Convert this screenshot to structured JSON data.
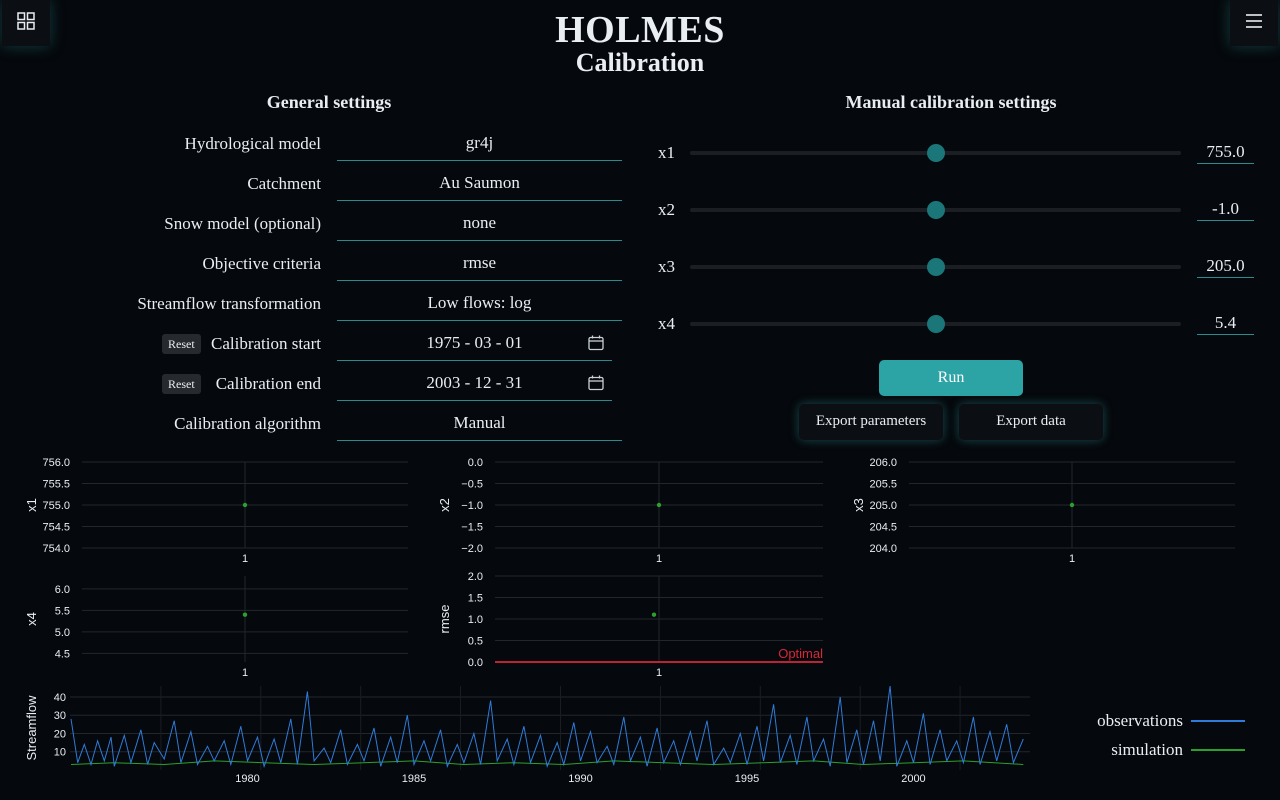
{
  "app": {
    "title": "HOLMES",
    "subtitle": "Calibration"
  },
  "icons": {
    "left": "grid-icon",
    "right": "menu-icon",
    "date": "calendar-icon"
  },
  "general": {
    "heading": "General settings",
    "rows": [
      {
        "label": "Hydrological model",
        "value": "gr4j"
      },
      {
        "label": "Catchment",
        "value": "Au Saumon"
      },
      {
        "label": "Snow model (optional)",
        "value": "none"
      },
      {
        "label": "Objective criteria",
        "value": "rmse"
      },
      {
        "label": "Streamflow transformation",
        "value": "Low flows: log"
      },
      {
        "label": "Calibration start",
        "value": "1975 - 03 - 01",
        "reset": "Reset"
      },
      {
        "label": "Calibration end",
        "value": "2003 - 12 - 31",
        "reset": "Reset"
      },
      {
        "label": "Calibration algorithm",
        "value": "Manual"
      }
    ]
  },
  "manual": {
    "heading": "Manual calibration settings",
    "params": [
      {
        "label": "x1",
        "value": "755.0",
        "position": 0.5
      },
      {
        "label": "x2",
        "value": "-1.0",
        "position": 0.5
      },
      {
        "label": "x3",
        "value": "205.0",
        "position": 0.5
      },
      {
        "label": "x4",
        "value": "5.4",
        "position": 0.5
      }
    ],
    "run_label": "Run",
    "export_params_label": "Export parameters",
    "export_data_label": "Export data"
  },
  "colors": {
    "accent": "#2ca3a5",
    "marker": "#2ca02c",
    "optimal": "#d6273a",
    "observations": "#2f7bd8",
    "simulation": "#2ca02c"
  },
  "chart_data": [
    {
      "type": "scatter",
      "ylabel": "x1",
      "x": [
        1
      ],
      "y": [
        755.0
      ],
      "xticks": [
        "1"
      ],
      "yticks": [
        "754.0",
        "754.5",
        "755.0",
        "755.5",
        "756.0"
      ],
      "ylim": [
        754.0,
        756.0
      ]
    },
    {
      "type": "scatter",
      "ylabel": "x2",
      "x": [
        1
      ],
      "y": [
        -1.0
      ],
      "xticks": [
        "1"
      ],
      "yticks": [
        "−2.0",
        "−1.5",
        "−1.0",
        "−0.5",
        "0.0"
      ],
      "ylim": [
        -2.0,
        0.0
      ]
    },
    {
      "type": "scatter",
      "ylabel": "x3",
      "x": [
        1
      ],
      "y": [
        205.0
      ],
      "xticks": [
        "1"
      ],
      "yticks": [
        "204.0",
        "204.5",
        "205.0",
        "205.5",
        "206.0"
      ],
      "ylim": [
        204.0,
        206.0
      ]
    },
    {
      "type": "scatter",
      "ylabel": "x4",
      "x": [
        1
      ],
      "y": [
        5.4
      ],
      "xticks": [
        "1"
      ],
      "yticks": [
        "4.5",
        "5.0",
        "5.5",
        "6.0"
      ],
      "ylim": [
        4.3,
        6.3
      ]
    },
    {
      "type": "scatter",
      "ylabel": "rmse",
      "x": [
        1
      ],
      "y": [
        1.1
      ],
      "xticks": [
        "1"
      ],
      "yticks": [
        "0.0",
        "0.5",
        "1.0",
        "1.5",
        "2.0"
      ],
      "ylim": [
        0.0,
        2.0
      ],
      "annotation": "Optimal",
      "hline": 0.0
    },
    {
      "type": "line",
      "ylabel": "Streamflow",
      "xlim": [
        1975.17,
        2004.0
      ],
      "ylim": [
        0,
        46
      ],
      "xticks": [
        "1980",
        "1985",
        "1990",
        "1995",
        "2000"
      ],
      "yticks": [
        "10",
        "20",
        "30",
        "40"
      ],
      "legend": "right",
      "series": [
        {
          "name": "observations",
          "x": [
            1975.2,
            1975.4,
            1975.6,
            1975.8,
            1976.0,
            1976.2,
            1976.4,
            1976.5,
            1976.8,
            1977.0,
            1977.3,
            1977.5,
            1977.7,
            1978.0,
            1978.3,
            1978.5,
            1978.8,
            1979.0,
            1979.3,
            1979.5,
            1979.8,
            1980.0,
            1980.3,
            1980.5,
            1980.8,
            1981.0,
            1981.3,
            1981.5,
            1981.8,
            1982.0,
            1982.3,
            1982.5,
            1982.8,
            1983.0,
            1983.3,
            1983.5,
            1983.8,
            1984.0,
            1984.3,
            1984.5,
            1984.8,
            1985.0,
            1985.3,
            1985.5,
            1985.8,
            1986.0,
            1986.3,
            1986.5,
            1986.8,
            1987.0,
            1987.3,
            1987.5,
            1987.8,
            1988.0,
            1988.3,
            1988.5,
            1988.8,
            1989.0,
            1989.3,
            1989.5,
            1989.8,
            1990.0,
            1990.3,
            1990.5,
            1990.8,
            1991.0,
            1991.3,
            1991.5,
            1991.8,
            1992.0,
            1992.3,
            1992.5,
            1992.8,
            1993.0,
            1993.3,
            1993.5,
            1993.8,
            1994.0,
            1994.3,
            1994.5,
            1994.8,
            1995.0,
            1995.3,
            1995.5,
            1995.8,
            1996.0,
            1996.3,
            1996.5,
            1996.8,
            1997.0,
            1997.3,
            1997.5,
            1997.8,
            1998.0,
            1998.3,
            1998.5,
            1998.8,
            1999.0,
            1999.3,
            1999.5,
            1999.8,
            2000.0,
            2000.3,
            2000.5,
            2000.8,
            2001.0,
            2001.3,
            2001.5,
            2001.8,
            2002.0,
            2002.3,
            2002.5,
            2002.8,
            2003.0,
            2003.3,
            2003.5,
            2003.8
          ],
          "y": [
            28,
            4,
            14,
            3,
            16,
            5,
            18,
            2,
            19,
            4,
            22,
            3,
            15,
            6,
            27,
            4,
            21,
            3,
            13,
            5,
            16,
            3,
            24,
            5,
            18,
            2,
            17,
            4,
            28,
            3,
            43,
            5,
            12,
            4,
            22,
            3,
            14,
            5,
            23,
            2,
            18,
            4,
            30,
            3,
            16,
            5,
            22,
            2,
            14,
            4,
            20,
            3,
            38,
            5,
            17,
            3,
            24,
            4,
            19,
            2,
            15,
            3,
            26,
            5,
            21,
            4,
            13,
            3,
            29,
            5,
            18,
            2,
            23,
            4,
            16,
            3,
            21,
            5,
            27,
            3,
            12,
            4,
            20,
            3,
            24,
            5,
            36,
            4,
            19,
            3,
            29,
            5,
            17,
            2,
            40,
            4,
            22,
            3,
            27,
            5,
            46,
            2,
            16,
            4,
            31,
            3,
            22,
            5,
            16,
            4,
            29,
            3,
            21,
            5,
            25,
            4,
            17
          ]
        },
        {
          "name": "simulation",
          "x": [
            1975.2,
            1976.5,
            1978.0,
            1979.5,
            1981.0,
            1982.5,
            1984.0,
            1985.5,
            1987.0,
            1988.5,
            1990.0,
            1991.5,
            1993.0,
            1994.5,
            1996.0,
            1997.5,
            1999.0,
            2000.5,
            2002.0,
            2003.8
          ],
          "y": [
            3,
            4,
            3,
            5,
            4,
            3,
            4,
            5,
            3,
            4,
            3,
            5,
            4,
            3,
            4,
            5,
            3,
            4,
            5,
            3
          ]
        }
      ]
    }
  ]
}
